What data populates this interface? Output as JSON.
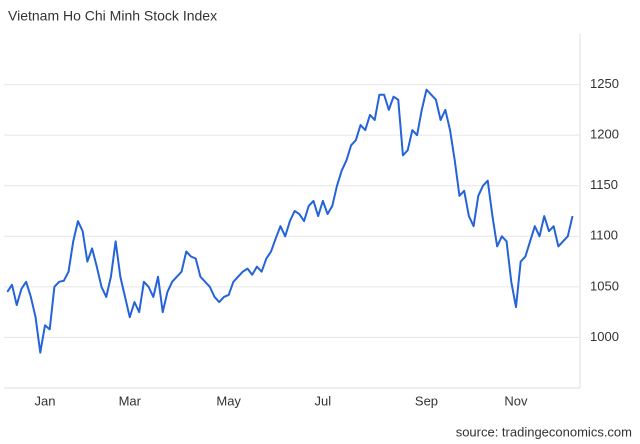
{
  "chart_data": {
    "type": "line",
    "title": "Vietnam Ho Chi Minh Stock Index",
    "source": "source: tradingeconomics.com",
    "categories": [
      null,
      null,
      null,
      null,
      null,
      null,
      null,
      null,
      "Jan",
      null,
      null,
      null,
      null,
      null,
      null,
      null,
      null,
      null,
      null,
      null,
      null,
      null,
      null,
      null,
      null,
      null,
      "Mar",
      null,
      null,
      null,
      null,
      null,
      null,
      null,
      null,
      null,
      null,
      null,
      null,
      null,
      null,
      null,
      null,
      null,
      null,
      null,
      null,
      "May",
      null,
      null,
      null,
      null,
      null,
      null,
      null,
      null,
      null,
      null,
      null,
      null,
      null,
      null,
      null,
      null,
      null,
      null,
      null,
      "Jul",
      null,
      null,
      null,
      null,
      null,
      null,
      null,
      null,
      null,
      null,
      null,
      null,
      null,
      null,
      null,
      null,
      null,
      null,
      null,
      null,
      null,
      "Sep",
      null,
      null,
      null,
      null,
      null,
      null,
      null,
      null,
      null,
      null,
      null,
      null,
      null,
      null,
      null,
      null,
      null,
      null,
      "Nov",
      null,
      null,
      null,
      null,
      null,
      null,
      null,
      null,
      null,
      null,
      null,
      null
    ],
    "series": [
      {
        "name": "Vietnam Ho Chi Minh Stock Index",
        "color": "#2563d9",
        "values": [
          1045,
          1052,
          1032,
          1048,
          1055,
          1040,
          1020,
          985,
          1012,
          1008,
          1050,
          1055,
          1056,
          1065,
          1095,
          1115,
          1105,
          1075,
          1088,
          1070,
          1050,
          1040,
          1060,
          1095,
          1060,
          1040,
          1020,
          1035,
          1025,
          1055,
          1050,
          1040,
          1060,
          1025,
          1045,
          1055,
          1060,
          1065,
          1085,
          1080,
          1078,
          1060,
          1055,
          1050,
          1040,
          1035,
          1040,
          1042,
          1055,
          1060,
          1065,
          1068,
          1062,
          1070,
          1065,
          1078,
          1085,
          1098,
          1110,
          1100,
          1115,
          1125,
          1122,
          1115,
          1130,
          1135,
          1120,
          1135,
          1122,
          1130,
          1150,
          1165,
          1175,
          1190,
          1195,
          1210,
          1205,
          1220,
          1215,
          1240,
          1240,
          1225,
          1238,
          1235,
          1180,
          1185,
          1205,
          1200,
          1225,
          1245,
          1240,
          1235,
          1215,
          1225,
          1205,
          1175,
          1140,
          1145,
          1120,
          1110,
          1140,
          1150,
          1155,
          1120,
          1090,
          1100,
          1095,
          1055,
          1030,
          1075,
          1080,
          1095,
          1110,
          1100,
          1120,
          1105,
          1110,
          1090,
          1095,
          1100,
          1120
        ]
      }
    ],
    "ylim": [
      950,
      1300
    ],
    "yticks": [
      1000,
      1050,
      1100,
      1150,
      1200,
      1250
    ],
    "grid": true
  }
}
